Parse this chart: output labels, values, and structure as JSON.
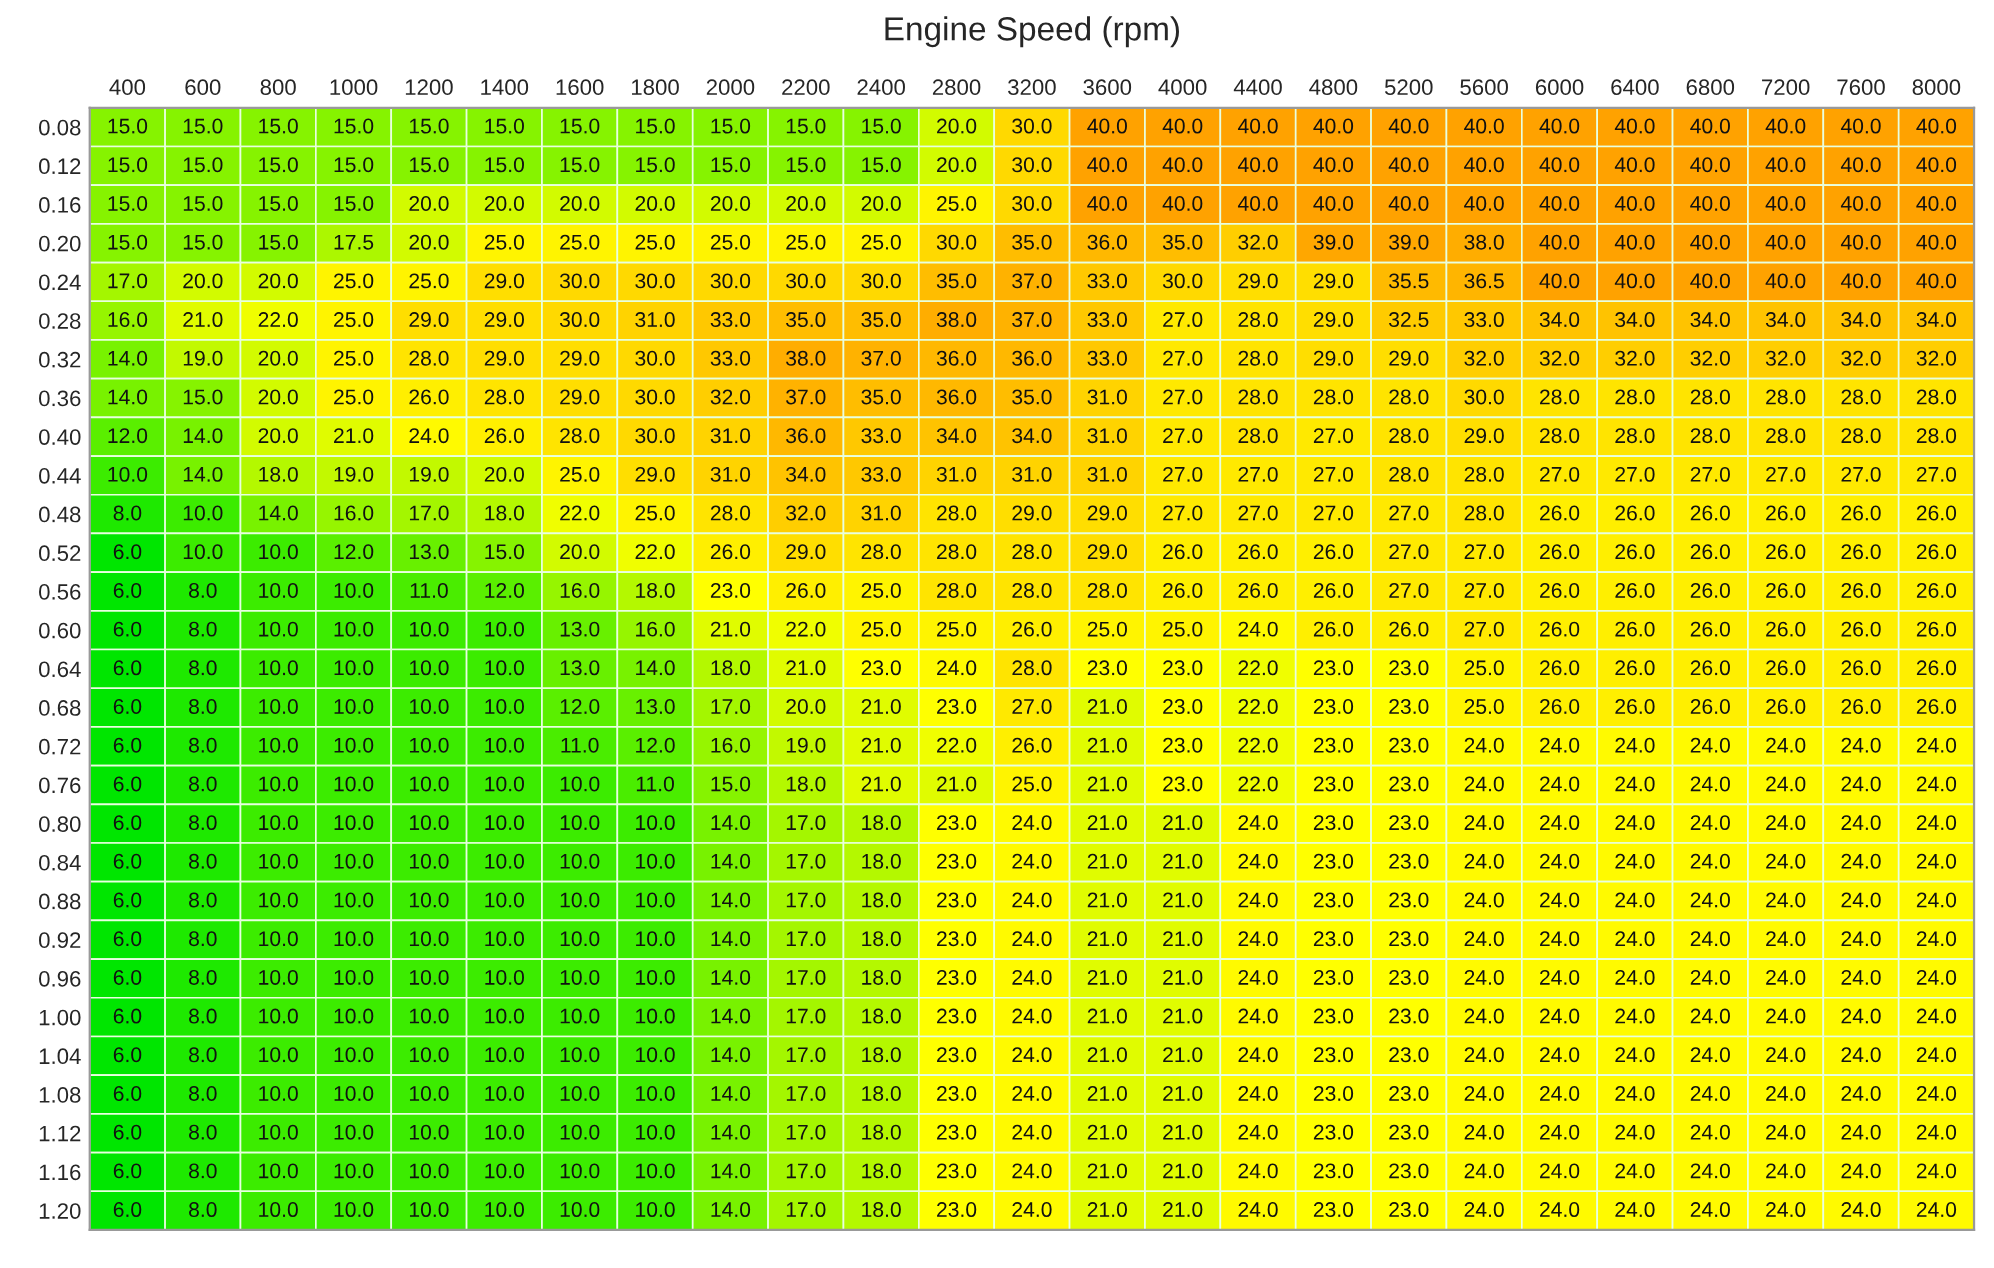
{
  "chart_data": {
    "type": "heatmap",
    "title": "Engine Speed (rpm)",
    "categories": [
      "400",
      "600",
      "800",
      "1000",
      "1200",
      "1400",
      "1600",
      "1800",
      "2000",
      "2200",
      "2400",
      "2800",
      "3200",
      "3600",
      "4000",
      "4400",
      "4800",
      "5200",
      "5600",
      "6000",
      "6400",
      "6800",
      "7200",
      "7600",
      "8000"
    ],
    "y_categories": [
      "0.08",
      "0.12",
      "0.16",
      "0.20",
      "0.24",
      "0.28",
      "0.32",
      "0.36",
      "0.40",
      "0.44",
      "0.48",
      "0.52",
      "0.56",
      "0.60",
      "0.64",
      "0.68",
      "0.72",
      "0.76",
      "0.80",
      "0.84",
      "0.88",
      "0.92",
      "0.96",
      "1.00",
      "1.04",
      "1.08",
      "1.12",
      "1.16",
      "1.20"
    ],
    "colors": [
      "#00e600",
      "#ffff00",
      "#ffa200"
    ],
    "cell_labels": [
      [
        "15.0",
        "15.0",
        "15.0",
        "15.0",
        "15.0",
        "15.0",
        "15.0",
        "15.0",
        "15.0",
        "15.0",
        "15.0",
        "20.0",
        "30.0",
        "40.0",
        "40.0",
        "40.0",
        "40.0",
        "40.0",
        "40.0",
        "40.0",
        "40.0",
        "40.0",
        "40.0",
        "40.0",
        "40.0"
      ],
      [
        "15.0",
        "15.0",
        "15.0",
        "15.0",
        "15.0",
        "15.0",
        "15.0",
        "15.0",
        "15.0",
        "15.0",
        "15.0",
        "20.0",
        "30.0",
        "40.0",
        "40.0",
        "40.0",
        "40.0",
        "40.0",
        "40.0",
        "40.0",
        "40.0",
        "40.0",
        "40.0",
        "40.0",
        "40.0"
      ],
      [
        "15.0",
        "15.0",
        "15.0",
        "15.0",
        "20.0",
        "20.0",
        "20.0",
        "20.0",
        "20.0",
        "20.0",
        "20.0",
        "25.0",
        "30.0",
        "40.0",
        "40.0",
        "40.0",
        "40.0",
        "40.0",
        "40.0",
        "40.0",
        "40.0",
        "40.0",
        "40.0",
        "40.0",
        "40.0"
      ],
      [
        "15.0",
        "15.0",
        "15.0",
        "17.5",
        "20.0",
        "25.0",
        "25.0",
        "25.0",
        "25.0",
        "25.0",
        "25.0",
        "30.0",
        "35.0",
        "36.0",
        "35.0",
        "32.0",
        "39.0",
        "39.0",
        "38.0",
        "40.0",
        "40.0",
        "40.0",
        "40.0",
        "40.0",
        "40.0"
      ],
      [
        "17.0",
        "20.0",
        "20.0",
        "25.0",
        "25.0",
        "29.0",
        "30.0",
        "30.0",
        "30.0",
        "30.0",
        "30.0",
        "35.0",
        "37.0",
        "33.0",
        "30.0",
        "29.0",
        "29.0",
        "35.5",
        "36.5",
        "40.0",
        "40.0",
        "40.0",
        "40.0",
        "40.0",
        "40.0"
      ],
      [
        "16.0",
        "21.0",
        "22.0",
        "25.0",
        "29.0",
        "29.0",
        "30.0",
        "31.0",
        "33.0",
        "35.0",
        "35.0",
        "38.0",
        "37.0",
        "33.0",
        "27.0",
        "28.0",
        "29.0",
        "32.5",
        "33.0",
        "34.0",
        "34.0",
        "34.0",
        "34.0",
        "34.0",
        "34.0"
      ],
      [
        "14.0",
        "19.0",
        "20.0",
        "25.0",
        "28.0",
        "29.0",
        "29.0",
        "30.0",
        "33.0",
        "38.0",
        "37.0",
        "36.0",
        "36.0",
        "33.0",
        "27.0",
        "28.0",
        "29.0",
        "29.0",
        "32.0",
        "32.0",
        "32.0",
        "32.0",
        "32.0",
        "32.0",
        "32.0"
      ],
      [
        "14.0",
        "15.0",
        "20.0",
        "25.0",
        "26.0",
        "28.0",
        "29.0",
        "30.0",
        "32.0",
        "37.0",
        "35.0",
        "36.0",
        "35.0",
        "31.0",
        "27.0",
        "28.0",
        "28.0",
        "28.0",
        "30.0",
        "28.0",
        "28.0",
        "28.0",
        "28.0",
        "28.0",
        "28.0"
      ],
      [
        "12.0",
        "14.0",
        "20.0",
        "21.0",
        "24.0",
        "26.0",
        "28.0",
        "30.0",
        "31.0",
        "36.0",
        "33.0",
        "34.0",
        "34.0",
        "31.0",
        "27.0",
        "28.0",
        "27.0",
        "28.0",
        "29.0",
        "28.0",
        "28.0",
        "28.0",
        "28.0",
        "28.0",
        "28.0"
      ],
      [
        "10.0",
        "14.0",
        "18.0",
        "19.0",
        "19.0",
        "20.0",
        "25.0",
        "29.0",
        "31.0",
        "34.0",
        "33.0",
        "31.0",
        "31.0",
        "31.0",
        "27.0",
        "27.0",
        "27.0",
        "28.0",
        "28.0",
        "27.0",
        "27.0",
        "27.0",
        "27.0",
        "27.0",
        "27.0"
      ],
      [
        "8.0",
        "10.0",
        "14.0",
        "16.0",
        "17.0",
        "18.0",
        "22.0",
        "25.0",
        "28.0",
        "32.0",
        "31.0",
        "28.0",
        "29.0",
        "29.0",
        "27.0",
        "27.0",
        "27.0",
        "27.0",
        "28.0",
        "26.0",
        "26.0",
        "26.0",
        "26.0",
        "26.0",
        "26.0"
      ],
      [
        "6.0",
        "10.0",
        "10.0",
        "12.0",
        "13.0",
        "15.0",
        "20.0",
        "22.0",
        "26.0",
        "29.0",
        "28.0",
        "28.0",
        "28.0",
        "29.0",
        "26.0",
        "26.0",
        "26.0",
        "27.0",
        "27.0",
        "26.0",
        "26.0",
        "26.0",
        "26.0",
        "26.0",
        "26.0"
      ],
      [
        "6.0",
        "8.0",
        "10.0",
        "10.0",
        "11.0",
        "12.0",
        "16.0",
        "18.0",
        "23.0",
        "26.0",
        "25.0",
        "28.0",
        "28.0",
        "28.0",
        "26.0",
        "26.0",
        "26.0",
        "27.0",
        "27.0",
        "26.0",
        "26.0",
        "26.0",
        "26.0",
        "26.0",
        "26.0"
      ],
      [
        "6.0",
        "8.0",
        "10.0",
        "10.0",
        "10.0",
        "10.0",
        "13.0",
        "16.0",
        "21.0",
        "22.0",
        "25.0",
        "25.0",
        "26.0",
        "25.0",
        "25.0",
        "24.0",
        "26.0",
        "26.0",
        "27.0",
        "26.0",
        "26.0",
        "26.0",
        "26.0",
        "26.0",
        "26.0"
      ],
      [
        "6.0",
        "8.0",
        "10.0",
        "10.0",
        "10.0",
        "10.0",
        "13.0",
        "14.0",
        "18.0",
        "21.0",
        "23.0",
        "24.0",
        "28.0",
        "23.0",
        "23.0",
        "22.0",
        "23.0",
        "23.0",
        "25.0",
        "26.0",
        "26.0",
        "26.0",
        "26.0",
        "26.0",
        "26.0"
      ],
      [
        "6.0",
        "8.0",
        "10.0",
        "10.0",
        "10.0",
        "10.0",
        "12.0",
        "13.0",
        "17.0",
        "20.0",
        "21.0",
        "23.0",
        "27.0",
        "21.0",
        "23.0",
        "22.0",
        "23.0",
        "23.0",
        "25.0",
        "26.0",
        "26.0",
        "26.0",
        "26.0",
        "26.0",
        "26.0"
      ],
      [
        "6.0",
        "8.0",
        "10.0",
        "10.0",
        "10.0",
        "10.0",
        "11.0",
        "12.0",
        "16.0",
        "19.0",
        "21.0",
        "22.0",
        "26.0",
        "21.0",
        "23.0",
        "22.0",
        "23.0",
        "23.0",
        "24.0",
        "24.0",
        "24.0",
        "24.0",
        "24.0",
        "24.0",
        "24.0"
      ],
      [
        "6.0",
        "8.0",
        "10.0",
        "10.0",
        "10.0",
        "10.0",
        "10.0",
        "11.0",
        "15.0",
        "18.0",
        "21.0",
        "21.0",
        "25.0",
        "21.0",
        "23.0",
        "22.0",
        "23.0",
        "23.0",
        "24.0",
        "24.0",
        "24.0",
        "24.0",
        "24.0",
        "24.0",
        "24.0"
      ],
      [
        "6.0",
        "8.0",
        "10.0",
        "10.0",
        "10.0",
        "10.0",
        "10.0",
        "10.0",
        "14.0",
        "17.0",
        "18.0",
        "23.0",
        "24.0",
        "21.0",
        "21.0",
        "24.0",
        "23.0",
        "23.0",
        "24.0",
        "24.0",
        "24.0",
        "24.0",
        "24.0",
        "24.0",
        "24.0"
      ],
      [
        "6.0",
        "8.0",
        "10.0",
        "10.0",
        "10.0",
        "10.0",
        "10.0",
        "10.0",
        "14.0",
        "17.0",
        "18.0",
        "23.0",
        "24.0",
        "21.0",
        "21.0",
        "24.0",
        "23.0",
        "23.0",
        "24.0",
        "24.0",
        "24.0",
        "24.0",
        "24.0",
        "24.0",
        "24.0"
      ],
      [
        "6.0",
        "8.0",
        "10.0",
        "10.0",
        "10.0",
        "10.0",
        "10.0",
        "10.0",
        "14.0",
        "17.0",
        "18.0",
        "23.0",
        "24.0",
        "21.0",
        "21.0",
        "24.0",
        "23.0",
        "23.0",
        "24.0",
        "24.0",
        "24.0",
        "24.0",
        "24.0",
        "24.0",
        "24.0"
      ],
      [
        "6.0",
        "8.0",
        "10.0",
        "10.0",
        "10.0",
        "10.0",
        "10.0",
        "10.0",
        "14.0",
        "17.0",
        "18.0",
        "23.0",
        "24.0",
        "21.0",
        "21.0",
        "24.0",
        "23.0",
        "23.0",
        "24.0",
        "24.0",
        "24.0",
        "24.0",
        "24.0",
        "24.0",
        "24.0"
      ],
      [
        "6.0",
        "8.0",
        "10.0",
        "10.0",
        "10.0",
        "10.0",
        "10.0",
        "10.0",
        "14.0",
        "17.0",
        "18.0",
        "23.0",
        "24.0",
        "21.0",
        "21.0",
        "24.0",
        "23.0",
        "23.0",
        "24.0",
        "24.0",
        "24.0",
        "24.0",
        "24.0",
        "24.0",
        "24.0"
      ],
      [
        "6.0",
        "8.0",
        "10.0",
        "10.0",
        "10.0",
        "10.0",
        "10.0",
        "10.0",
        "14.0",
        "17.0",
        "18.0",
        "23.0",
        "24.0",
        "21.0",
        "21.0",
        "24.0",
        "23.0",
        "23.0",
        "24.0",
        "24.0",
        "24.0",
        "24.0",
        "24.0",
        "24.0",
        "24.0"
      ],
      [
        "6.0",
        "8.0",
        "10.0",
        "10.0",
        "10.0",
        "10.0",
        "10.0",
        "10.0",
        "14.0",
        "17.0",
        "18.0",
        "23.0",
        "24.0",
        "21.0",
        "21.0",
        "24.0",
        "23.0",
        "23.0",
        "24.0",
        "24.0",
        "24.0",
        "24.0",
        "24.0",
        "24.0",
        "24.0"
      ],
      [
        "6.0",
        "8.0",
        "10.0",
        "10.0",
        "10.0",
        "10.0",
        "10.0",
        "10.0",
        "14.0",
        "17.0",
        "18.0",
        "23.0",
        "24.0",
        "21.0",
        "21.0",
        "24.0",
        "23.0",
        "23.0",
        "24.0",
        "24.0",
        "24.0",
        "24.0",
        "24.0",
        "24.0",
        "24.0"
      ],
      [
        "6.0",
        "8.0",
        "10.0",
        "10.0",
        "10.0",
        "10.0",
        "10.0",
        "10.0",
        "14.0",
        "17.0",
        "18.0",
        "23.0",
        "24.0",
        "21.0",
        "21.0",
        "24.0",
        "23.0",
        "23.0",
        "24.0",
        "24.0",
        "24.0",
        "24.0",
        "24.0",
        "24.0",
        "24.0"
      ],
      [
        "6.0",
        "8.0",
        "10.0",
        "10.0",
        "10.0",
        "10.0",
        "10.0",
        "10.0",
        "14.0",
        "17.0",
        "18.0",
        "23.0",
        "24.0",
        "21.0",
        "21.0",
        "24.0",
        "23.0",
        "23.0",
        "24.0",
        "24.0",
        "24.0",
        "24.0",
        "24.0",
        "24.0",
        "24.0"
      ],
      [
        "6.0",
        "8.0",
        "10.0",
        "10.0",
        "10.0",
        "10.0",
        "10.0",
        "10.0",
        "14.0",
        "17.0",
        "18.0",
        "23.0",
        "24.0",
        "21.0",
        "21.0",
        "24.0",
        "23.0",
        "23.0",
        "24.0",
        "24.0",
        "24.0",
        "24.0",
        "24.0",
        "24.0",
        "24.0"
      ]
    ],
    "cells": [
      [
        15.0,
        15.0,
        15.0,
        15.0,
        15.0,
        15.0,
        15.0,
        15.0,
        15.0,
        15.0,
        15.0,
        20.0,
        30.0,
        40.0,
        40.0,
        40.0,
        40.0,
        40.0,
        40.0,
        40.0,
        40.0,
        40.0,
        40.0,
        40.0,
        40.0
      ],
      [
        15.0,
        15.0,
        15.0,
        15.0,
        15.0,
        15.0,
        15.0,
        15.0,
        15.0,
        15.0,
        15.0,
        20.0,
        30.0,
        40.0,
        40.0,
        40.0,
        40.0,
        40.0,
        40.0,
        40.0,
        40.0,
        40.0,
        40.0,
        40.0,
        40.0
      ],
      [
        15.0,
        15.0,
        15.0,
        15.0,
        20.0,
        20.0,
        20.0,
        20.0,
        20.0,
        20.0,
        20.0,
        25.0,
        30.0,
        40.0,
        40.0,
        40.0,
        40.0,
        40.0,
        40.0,
        40.0,
        40.0,
        40.0,
        40.0,
        40.0,
        40.0
      ],
      [
        15.0,
        15.0,
        15.0,
        17.5,
        20.0,
        25.0,
        25.0,
        25.0,
        25.0,
        25.0,
        25.0,
        30.0,
        35.0,
        36.0,
        35.0,
        32.0,
        39.0,
        39.0,
        38.0,
        40.0,
        40.0,
        40.0,
        40.0,
        40.0,
        40.0
      ],
      [
        17.0,
        20.0,
        20.0,
        25.0,
        25.0,
        29.0,
        30.0,
        30.0,
        30.0,
        30.0,
        30.0,
        35.0,
        37.0,
        33.0,
        30.0,
        29.0,
        29.0,
        35.5,
        36.5,
        40.0,
        40.0,
        40.0,
        40.0,
        40.0,
        40.0
      ],
      [
        16.0,
        21.0,
        22.0,
        25.0,
        29.0,
        29.0,
        30.0,
        31.0,
        33.0,
        35.0,
        35.0,
        38.0,
        37.0,
        33.0,
        27.0,
        28.0,
        29.0,
        32.5,
        33.0,
        34.0,
        34.0,
        34.0,
        34.0,
        34.0,
        34.0
      ],
      [
        14.0,
        19.0,
        20.0,
        25.0,
        28.0,
        29.0,
        29.0,
        30.0,
        33.0,
        38.0,
        37.0,
        36.0,
        36.0,
        33.0,
        27.0,
        28.0,
        29.0,
        29.0,
        32.0,
        32.0,
        32.0,
        32.0,
        32.0,
        32.0,
        32.0
      ],
      [
        14.0,
        15.0,
        20.0,
        25.0,
        26.0,
        28.0,
        29.0,
        30.0,
        32.0,
        37.0,
        35.0,
        36.0,
        35.0,
        31.0,
        27.0,
        28.0,
        28.0,
        28.0,
        30.0,
        28.0,
        28.0,
        28.0,
        28.0,
        28.0,
        28.0
      ],
      [
        12.0,
        14.0,
        20.0,
        21.0,
        24.0,
        26.0,
        28.0,
        30.0,
        31.0,
        36.0,
        33.0,
        34.0,
        34.0,
        31.0,
        27.0,
        28.0,
        27.0,
        28.0,
        29.0,
        28.0,
        28.0,
        28.0,
        28.0,
        28.0,
        28.0
      ],
      [
        10.0,
        14.0,
        18.0,
        19.0,
        19.0,
        20.0,
        25.0,
        29.0,
        31.0,
        34.0,
        33.0,
        31.0,
        31.0,
        31.0,
        27.0,
        27.0,
        27.0,
        28.0,
        28.0,
        27.0,
        27.0,
        27.0,
        27.0,
        27.0,
        27.0
      ],
      [
        8.0,
        10.0,
        14.0,
        16.0,
        17.0,
        18.0,
        22.0,
        25.0,
        28.0,
        32.0,
        31.0,
        28.0,
        29.0,
        29.0,
        27.0,
        27.0,
        27.0,
        27.0,
        28.0,
        26.0,
        26.0,
        26.0,
        26.0,
        26.0,
        26.0
      ],
      [
        6.0,
        10.0,
        10.0,
        12.0,
        13.0,
        15.0,
        20.0,
        22.0,
        26.0,
        29.0,
        28.0,
        28.0,
        28.0,
        29.0,
        26.0,
        26.0,
        26.0,
        27.0,
        27.0,
        26.0,
        26.0,
        26.0,
        26.0,
        26.0,
        26.0
      ],
      [
        6.0,
        8.0,
        10.0,
        10.0,
        11.0,
        12.0,
        16.0,
        18.0,
        23.0,
        26.0,
        25.0,
        28.0,
        28.0,
        28.0,
        26.0,
        26.0,
        26.0,
        27.0,
        27.0,
        26.0,
        26.0,
        26.0,
        26.0,
        26.0,
        26.0
      ],
      [
        6.0,
        8.0,
        10.0,
        10.0,
        10.0,
        10.0,
        13.0,
        16.0,
        21.0,
        22.0,
        25.0,
        25.0,
        26.0,
        25.0,
        25.0,
        24.0,
        26.0,
        26.0,
        27.0,
        26.0,
        26.0,
        26.0,
        26.0,
        26.0,
        26.0
      ],
      [
        6.0,
        8.0,
        10.0,
        10.0,
        10.0,
        10.0,
        13.0,
        14.0,
        18.0,
        21.0,
        23.0,
        24.0,
        28.0,
        23.0,
        23.0,
        22.0,
        23.0,
        23.0,
        25.0,
        26.0,
        26.0,
        26.0,
        26.0,
        26.0,
        26.0
      ],
      [
        6.0,
        8.0,
        10.0,
        10.0,
        10.0,
        10.0,
        12.0,
        13.0,
        17.0,
        20.0,
        21.0,
        23.0,
        27.0,
        21.0,
        23.0,
        22.0,
        23.0,
        23.0,
        25.0,
        26.0,
        26.0,
        26.0,
        26.0,
        26.0,
        26.0
      ],
      [
        6.0,
        8.0,
        10.0,
        10.0,
        10.0,
        10.0,
        11.0,
        12.0,
        16.0,
        19.0,
        21.0,
        22.0,
        26.0,
        21.0,
        23.0,
        22.0,
        23.0,
        23.0,
        24.0,
        24.0,
        24.0,
        24.0,
        24.0,
        24.0,
        24.0
      ],
      [
        6.0,
        8.0,
        10.0,
        10.0,
        10.0,
        10.0,
        10.0,
        11.0,
        15.0,
        18.0,
        21.0,
        21.0,
        25.0,
        21.0,
        23.0,
        22.0,
        23.0,
        23.0,
        24.0,
        24.0,
        24.0,
        24.0,
        24.0,
        24.0,
        24.0
      ],
      [
        6.0,
        8.0,
        10.0,
        10.0,
        10.0,
        10.0,
        10.0,
        10.0,
        14.0,
        17.0,
        18.0,
        23.0,
        24.0,
        21.0,
        21.0,
        24.0,
        23.0,
        23.0,
        24.0,
        24.0,
        24.0,
        24.0,
        24.0,
        24.0,
        24.0
      ],
      [
        6.0,
        8.0,
        10.0,
        10.0,
        10.0,
        10.0,
        10.0,
        10.0,
        14.0,
        17.0,
        18.0,
        23.0,
        24.0,
        21.0,
        21.0,
        24.0,
        23.0,
        23.0,
        24.0,
        24.0,
        24.0,
        24.0,
        24.0,
        24.0,
        24.0
      ],
      [
        6.0,
        8.0,
        10.0,
        10.0,
        10.0,
        10.0,
        10.0,
        10.0,
        14.0,
        17.0,
        18.0,
        23.0,
        24.0,
        21.0,
        21.0,
        24.0,
        23.0,
        23.0,
        24.0,
        24.0,
        24.0,
        24.0,
        24.0,
        24.0,
        24.0
      ],
      [
        6.0,
        8.0,
        10.0,
        10.0,
        10.0,
        10.0,
        10.0,
        10.0,
        14.0,
        17.0,
        18.0,
        23.0,
        24.0,
        21.0,
        21.0,
        24.0,
        23.0,
        23.0,
        24.0,
        24.0,
        24.0,
        24.0,
        24.0,
        24.0,
        24.0
      ],
      [
        6.0,
        8.0,
        10.0,
        10.0,
        10.0,
        10.0,
        10.0,
        10.0,
        14.0,
        17.0,
        18.0,
        23.0,
        24.0,
        21.0,
        21.0,
        24.0,
        23.0,
        23.0,
        24.0,
        24.0,
        24.0,
        24.0,
        24.0,
        24.0,
        24.0
      ],
      [
        6.0,
        8.0,
        10.0,
        10.0,
        10.0,
        10.0,
        10.0,
        10.0,
        14.0,
        17.0,
        18.0,
        23.0,
        24.0,
        21.0,
        21.0,
        24.0,
        23.0,
        23.0,
        24.0,
        24.0,
        24.0,
        24.0,
        24.0,
        24.0,
        24.0
      ],
      [
        6.0,
        8.0,
        10.0,
        10.0,
        10.0,
        10.0,
        10.0,
        10.0,
        14.0,
        17.0,
        18.0,
        23.0,
        24.0,
        21.0,
        21.0,
        24.0,
        23.0,
        23.0,
        24.0,
        24.0,
        24.0,
        24.0,
        24.0,
        24.0,
        24.0
      ],
      [
        6.0,
        8.0,
        10.0,
        10.0,
        10.0,
        10.0,
        10.0,
        10.0,
        14.0,
        17.0,
        18.0,
        23.0,
        24.0,
        21.0,
        21.0,
        24.0,
        23.0,
        23.0,
        24.0,
        24.0,
        24.0,
        24.0,
        24.0,
        24.0,
        24.0
      ],
      [
        6.0,
        8.0,
        10.0,
        10.0,
        10.0,
        10.0,
        10.0,
        10.0,
        14.0,
        17.0,
        18.0,
        23.0,
        24.0,
        21.0,
        21.0,
        24.0,
        23.0,
        23.0,
        24.0,
        24.0,
        24.0,
        24.0,
        24.0,
        24.0,
        24.0
      ],
      [
        6.0,
        8.0,
        10.0,
        10.0,
        10.0,
        10.0,
        10.0,
        10.0,
        14.0,
        17.0,
        18.0,
        23.0,
        24.0,
        21.0,
        21.0,
        24.0,
        23.0,
        23.0,
        24.0,
        24.0,
        24.0,
        24.0,
        24.0,
        24.0,
        24.0
      ],
      [
        6.0,
        8.0,
        10.0,
        10.0,
        10.0,
        10.0,
        10.0,
        10.0,
        14.0,
        17.0,
        18.0,
        23.0,
        24.0,
        21.0,
        21.0,
        24.0,
        23.0,
        23.0,
        24.0,
        24.0,
        24.0,
        24.0,
        24.0,
        24.0,
        24.0
      ]
    ]
  }
}
